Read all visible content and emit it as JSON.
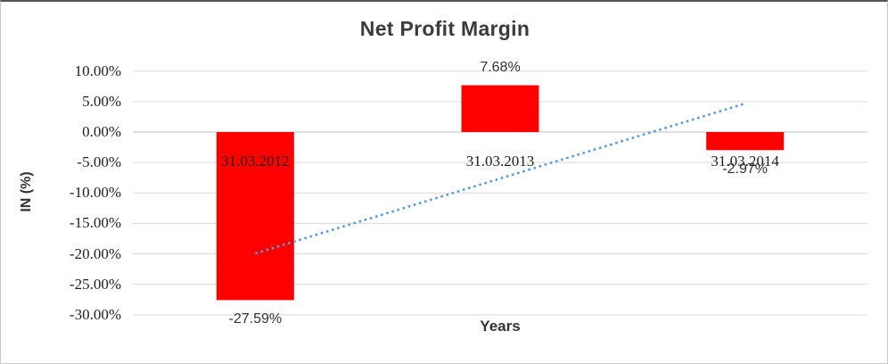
{
  "chart_data": {
    "type": "bar",
    "title": "Net Profit Margin",
    "xlabel": "Years",
    "ylabel": "IN (%)",
    "categories": [
      "31.03.2012",
      "31.03.2013",
      "31.03.2014"
    ],
    "values": [
      -27.59,
      7.68,
      -2.97
    ],
    "data_labels": [
      "-27.59%",
      "7.68%",
      "-2.97%"
    ],
    "ylim": [
      -30,
      10
    ],
    "ytick_step": 5,
    "ytick_labels": [
      "10.00%",
      "5.00%",
      "0.00%",
      "-5.00%",
      "-10.00%",
      "-15.00%",
      "-20.00%",
      "-25.00%",
      "-30.00%"
    ],
    "grid": true,
    "legend": "none",
    "trendline": {
      "type": "linear",
      "style": "dotted",
      "start_value": -19.94,
      "end_value": 4.68
    },
    "colors": {
      "bar": "#FF0000",
      "trendline": "#5B9BD5",
      "gridline": "#D9D9D9",
      "zero_line": "#BFBFBF",
      "title_text": "#3B3B3B",
      "axis_text": "#1F1F1F"
    }
  }
}
